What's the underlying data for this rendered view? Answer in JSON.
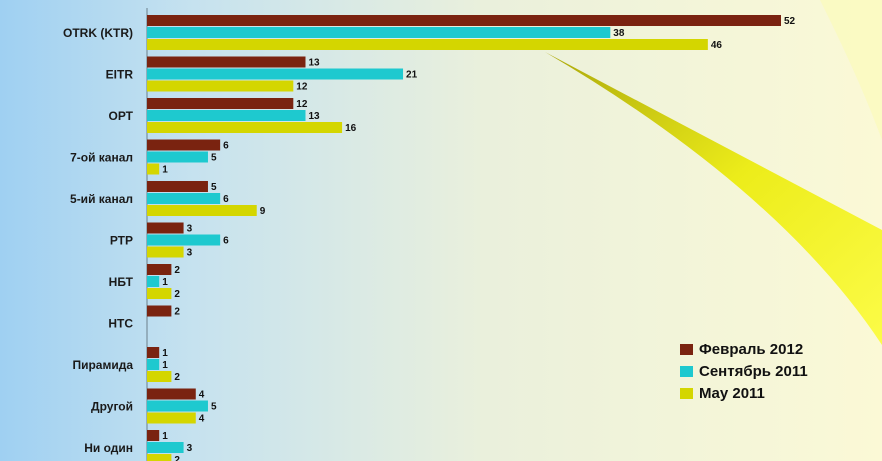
{
  "chart_data": {
    "type": "bar",
    "orientation": "horizontal",
    "categories": [
      "OTRK (KTR)",
      "EITR",
      "ОРТ",
      "7-ой канал",
      "5-ий канал",
      "РТР",
      "НБТ",
      "НТС",
      "Пирамида",
      "Другой",
      "Ни один"
    ],
    "series": [
      {
        "name": "Февраль 2012",
        "color": "#7a2310",
        "values": [
          52,
          13,
          12,
          6,
          5,
          3,
          2,
          2,
          1,
          4,
          1
        ]
      },
      {
        "name": "Сентябрь 2011",
        "color": "#1ec9cf",
        "values": [
          38,
          21,
          13,
          5,
          6,
          6,
          1,
          null,
          1,
          5,
          3
        ]
      },
      {
        "name": "May 2011",
        "color": "#d4d600",
        "values": [
          46,
          12,
          16,
          1,
          9,
          3,
          2,
          null,
          2,
          4,
          2
        ]
      }
    ],
    "xlim": [
      0,
      52
    ],
    "legend_position": "bottom-right",
    "title": "",
    "xlabel": "",
    "ylabel": ""
  }
}
